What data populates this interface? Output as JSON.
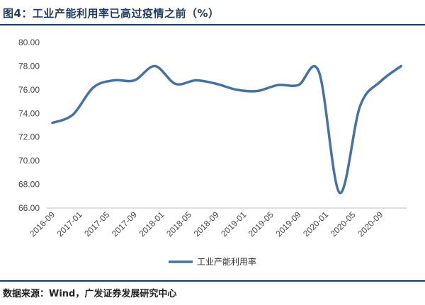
{
  "title": "图4：工业产能利用率已高过疫情之前（%）",
  "source": "数据来源：Wind，广发证券发展研究中心",
  "colors": {
    "line": "#4472a8",
    "accent": "#1f3a5f",
    "axis": "#bfbfbf"
  },
  "chart_data": {
    "type": "line",
    "title": "图4：工业产能利用率已高过疫情之前（%）",
    "xlabel": "",
    "ylabel": "",
    "ylim": [
      66.0,
      80.0
    ],
    "yticks": [
      "66.00",
      "68.00",
      "70.00",
      "72.00",
      "74.00",
      "76.00",
      "78.00",
      "80.00"
    ],
    "xticks": [
      "2016-09",
      "2017-01",
      "2017-05",
      "2017-09",
      "2018-01",
      "2018-05",
      "2018-09",
      "2019-01",
      "2019-05",
      "2019-09",
      "2020-01",
      "2020-05",
      "2020-09"
    ],
    "grid": false,
    "legend": "bottom-center",
    "x": [
      "2016-09",
      "2016-12",
      "2017-03",
      "2017-06",
      "2017-09",
      "2017-12",
      "2018-03",
      "2018-06",
      "2018-09",
      "2018-12",
      "2019-03",
      "2019-06",
      "2019-09",
      "2019-12",
      "2020-03",
      "2020-06",
      "2020-09",
      "2020-12"
    ],
    "series": [
      {
        "name": "工业产能利用率",
        "values": [
          73.2,
          73.9,
          76.2,
          76.8,
          76.8,
          78.0,
          76.5,
          76.8,
          76.5,
          76.0,
          75.9,
          76.4,
          76.4,
          77.5,
          67.3,
          74.6,
          76.7,
          78.0
        ]
      }
    ]
  }
}
